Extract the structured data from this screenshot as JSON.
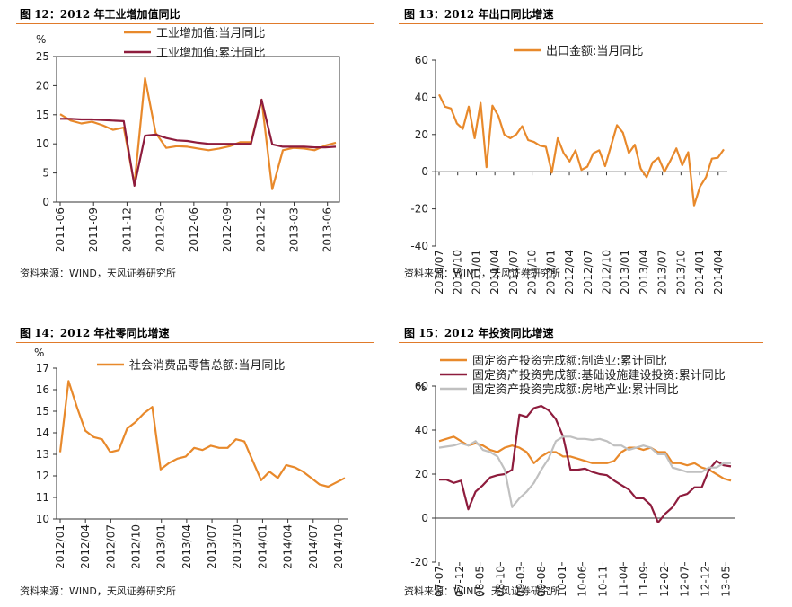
{
  "panels": [
    {
      "title": "图 12：2012 年工业增加值同比",
      "source": "资料来源：WIND，天风证券研究所"
    },
    {
      "title": "图 13：2012 年出口同比增速",
      "source": "资料来源：WIND，天风证券研究所"
    },
    {
      "title": "图 14：2012 年社零同比增速",
      "source": "资料来源：WIND，天风证券研究所"
    },
    {
      "title": "图 15：2012 年投资同比增速",
      "source": "资料来源：WIND，天风证券研究所"
    }
  ],
  "chart_data": [
    {
      "type": "line",
      "unit": "%",
      "ylim": [
        0,
        25
      ],
      "yticks": [
        0,
        5,
        10,
        15,
        20,
        25
      ],
      "xticks": [
        "2011-06",
        "2011-09",
        "2011-12",
        "2012-03",
        "2012-06",
        "2012-09",
        "2012-12",
        "2013-03",
        "2013-06"
      ],
      "legend": "top",
      "series": [
        {
          "name": "工业增加值:当月同比",
          "color": "#e8892b",
          "values": [
            15.1,
            14.0,
            13.5,
            13.8,
            13.2,
            12.4,
            12.8,
            3.0,
            21.3,
            11.9,
            9.3,
            9.6,
            9.5,
            9.2,
            8.9,
            9.2,
            9.6,
            10.3,
            10.3,
            17.6,
            2.2,
            8.9,
            9.3,
            9.2,
            8.9,
            9.7,
            10.2
          ]
        },
        {
          "name": "工业增加值:累计同比",
          "color": "#8e1c3d",
          "values": [
            14.3,
            14.3,
            14.2,
            14.2,
            14.1,
            14.0,
            13.9,
            2.8,
            11.4,
            11.6,
            11.0,
            10.6,
            10.5,
            10.2,
            10.0,
            10.0,
            10.0,
            10.0,
            10.0,
            17.6,
            9.9,
            9.5,
            9.5,
            9.5,
            9.4,
            9.4,
            9.5
          ]
        }
      ]
    },
    {
      "type": "line",
      "ylim": [
        -40,
        60
      ],
      "yticks": [
        -40,
        -20,
        0,
        20,
        40,
        60
      ],
      "xticks": [
        "2010/07",
        "2010/10",
        "2011/01",
        "2011/04",
        "2011/07",
        "2011/10",
        "2012/01",
        "2012/04",
        "2012/07",
        "2012/10",
        "2013/01",
        "2013/04",
        "2013/07",
        "2013/10",
        "2014/01",
        "2014/04"
      ],
      "legend": "top",
      "series": [
        {
          "name": "出口金额:当月同比",
          "color": "#e8892b",
          "values": [
            41.5,
            35,
            34,
            26,
            23,
            35,
            18,
            37,
            2.4,
            35.5,
            30,
            20,
            18,
            20,
            24.5,
            17,
            16,
            14,
            13.4,
            -0.5,
            18,
            10,
            5.5,
            11.5,
            1,
            2.7,
            9.9,
            11.5,
            3,
            14,
            25,
            21,
            10,
            14.5,
            1.7,
            -3,
            5,
            7.5,
            0,
            6,
            12.5,
            3.5,
            10.5,
            -18.1,
            -8,
            -3,
            7,
            7.5,
            12
          ]
        }
      ]
    },
    {
      "type": "line",
      "ylim": [
        10,
        17
      ],
      "yticks": [
        10,
        11,
        12,
        13,
        14,
        15,
        16,
        17
      ],
      "xticks": [
        "2012/01",
        "2012/04",
        "2012/07",
        "2012/10",
        "2013/01",
        "2013/04",
        "2013/07",
        "2013/10",
        "2014/01",
        "2014/04",
        "2014/07",
        "2014/10"
      ],
      "unit": "%",
      "legend": "top",
      "series": [
        {
          "name": "社会消费品零售总额:当月同比",
          "color": "#e8892b",
          "values": [
            13.1,
            16.4,
            15.2,
            14.1,
            13.8,
            13.7,
            13.1,
            13.2,
            14.2,
            14.5,
            14.9,
            15.2,
            12.3,
            12.6,
            12.8,
            12.9,
            13.3,
            13.2,
            13.4,
            13.3,
            13.3,
            13.7,
            13.6,
            12.7,
            11.8,
            12.2,
            11.9,
            12.5,
            12.4,
            12.2,
            11.9,
            11.6,
            11.5,
            11.7,
            11.9
          ]
        }
      ]
    },
    {
      "type": "line",
      "ylim": [
        -20,
        60
      ],
      "yticks": [
        -20,
        0,
        20,
        40,
        60
      ],
      "xticks": [
        "07-07",
        "07-12",
        "08-05",
        "08-10",
        "09-03",
        "09-08",
        "10-01",
        "10-06",
        "10-11",
        "11-04",
        "11-09",
        "12-02",
        "12-07",
        "12-12",
        "13-05"
      ],
      "unit": "%",
      "legend": "top",
      "series": [
        {
          "name": "固定资产投资完成额:制造业:累计同比",
          "color": "#e8892b",
          "values": [
            35,
            36,
            37,
            35,
            33,
            34,
            33,
            31,
            30,
            32,
            33,
            32,
            30,
            25,
            28,
            30,
            30,
            28,
            28,
            27,
            26,
            25,
            25,
            25,
            26,
            30,
            32,
            32,
            31,
            32,
            30,
            30,
            25,
            25,
            24,
            25,
            23,
            22,
            20,
            18,
            17
          ]
        },
        {
          "name": "固定资产投资完成额:基础设施建设投资:累计同比",
          "color": "#8e1c3d",
          "values": [
            17.5,
            17.5,
            16,
            17,
            4,
            12,
            15,
            18.5,
            19.5,
            20,
            22,
            47,
            46,
            50,
            51,
            49,
            45,
            37,
            22,
            22,
            22.5,
            21,
            20,
            19.5,
            17,
            15,
            13,
            9,
            9,
            6,
            -2,
            2,
            5,
            10,
            11,
            14,
            14,
            22,
            26,
            24,
            23.5
          ]
        },
        {
          "name": "固定资产投资完成额:房地产业:累计同比",
          "color": "#c0c0c0",
          "values": [
            32,
            32.5,
            33,
            34,
            33,
            35,
            31,
            30,
            28,
            22,
            5,
            9,
            12,
            16,
            22,
            27,
            35,
            37,
            37,
            36,
            36,
            35.5,
            36,
            35,
            33,
            33,
            31,
            32,
            33,
            32,
            29,
            29,
            23,
            22,
            21,
            21,
            21,
            23,
            23,
            25,
            25
          ]
        }
      ]
    }
  ]
}
